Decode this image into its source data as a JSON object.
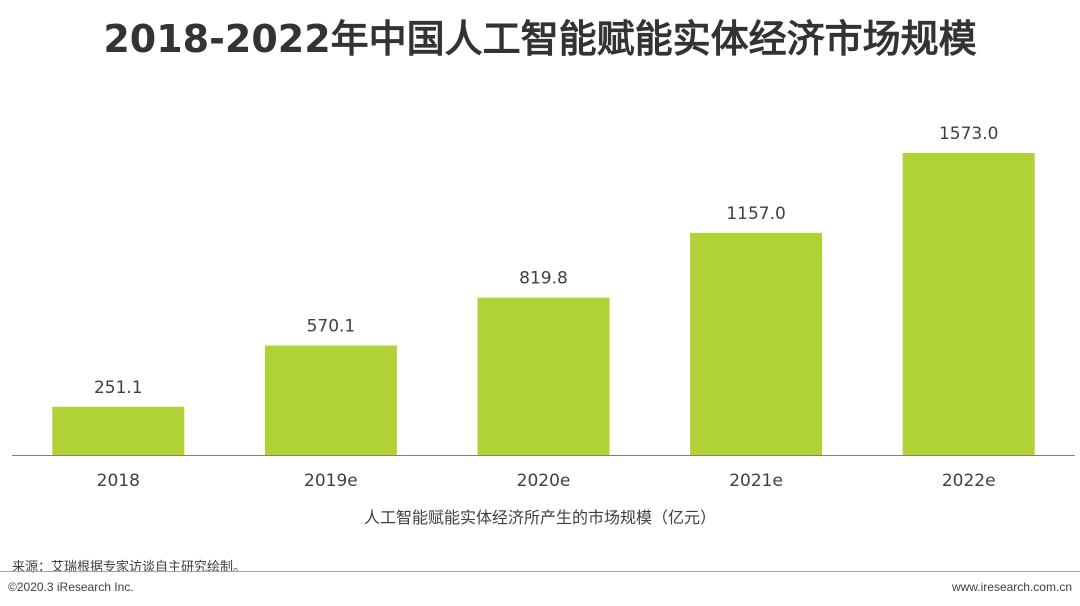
{
  "title": "2018-2022年中国人工智能赋能实体经济市场规模",
  "chart_data": {
    "type": "bar",
    "title": "2018-2022年中国人工智能赋能实体经济市场规模",
    "categories": [
      "2018",
      "2019e",
      "2020e",
      "2021e",
      "2022e"
    ],
    "values": [
      251.1,
      570.1,
      819.8,
      1157.0,
      1573.0
    ],
    "value_labels": [
      "251.1",
      "570.1",
      "819.8",
      "1157.0",
      "1573.0"
    ],
    "legend_label": "人工智能赋能实体经济所产生的市场规模（亿元）",
    "bar_color": "#b0d235",
    "ylim": [
      0,
      1650
    ],
    "grid": false
  },
  "footer": {
    "source": "来源：艾瑞根据专家访谈自主研究绘制。",
    "copyright": "©2020.3 iResearch Inc.",
    "website": "www.iresearch.com.cn"
  }
}
